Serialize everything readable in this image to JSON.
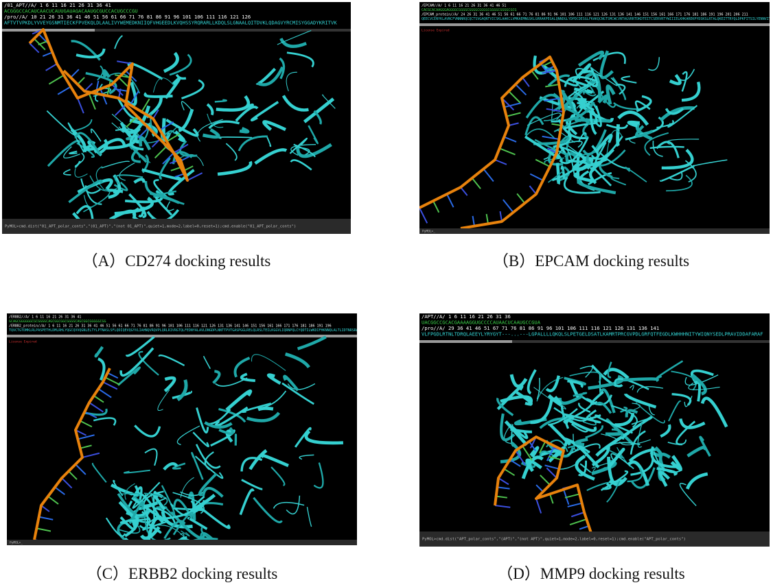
{
  "panels": [
    {
      "caption": "（A）CD274 docking results",
      "header": [
        "/01_APT//A/ 1      6     11     16     21     26     31     36     41",
        "ACGGGCCACAUCAACUCAUUGAUAGACAAUGCGUCCACUGCCCGU",
        "/pro//A/ 10 21   26   31   36   41   46   51   56   61   66   71   76   81   86   91   96   101  106  111  116  121  126",
        "AFTVTVPKDLYVVEYGSNMTIECKFPVEKQLDLAALIVYWEMEDKNIIQFVHGEEDLKVQHSSYRQRARLLKDQLSLGNAALQITDVKLQDAGVYRCMISYGGADYKRITVK"
      ],
      "status": "",
      "command": "PyMOL>cmd.dist(\"01_APT_polar_conts\",\"(01_APT)\",\"(not 01_APT)\",quiet=1,mode=2,label=0,reset=1);cmd.enable(\"01_APT_polar_conts\")"
    },
    {
      "caption": "（B）EPCAM docking results",
      "header": [
        "/EPCAM//A/ 1    6    11   16   21   26   31   36   41   46   51",
        "CACGCACAAGGGAGGGGCGGGGCGGGGCGGGGCGGGGCGGGGCGCG",
        "/EPCAM_protein//A/ 24 26 31 36 41 46 51 56 61 66 71 76 81 86 91 96 101 106 111 116 121 126 131 136 141 146 151 156 161 166 171 176 181 186 191 196 201 206 211",
        "QEECVCENYKLAVNCFVNNNRQCQCTSVGAQNTVICSKLAAKCLVMKAEMNGSKLGRRAKPEGALQNNDGLYDPDCDESGLFKAKQCNGTSMCWCVNTAGVRRTDKDTEITCSERVRTYWIIIELKHKAREKPYDSKSLRTALQKEITTRYQLDPKFITSILYENNVITIDLVQNSSQKTQNDVDIADVAYYFEKDVKGESLFHSKKMDLTVNGEQLDLDPGQTLIYYVDEKAPEFSMQGLK"
      ],
      "status": "License Expired",
      "command": "PyMOL>_"
    },
    {
      "caption": "（C）ERBB2 docking results",
      "header": [
        "/ERBB2//A/ 1    6    11   16   21   26   31   36   41",
        "GCAGCGGGGGGCGCGGGGCAGCGGCGGCGGGGCAGCGGCGGGGGCGG",
        "/ERBB2_protein//A/ 1 6 11 16 21 26 31 36 41 46 51 56 61 66 71 76 81 86 91 96 101 106 111 116 121 126 131 136 141 146 151 156 161 166 171 176 181 186 191 196",
        "TQVCTGTDMKLRLPASPETHLDMLRHLYQGCQVVQGNLELTYLPTNASLSFLQDIQEVQGYVLIAHNQVRQVPLQRLRIVRGTQLFEDNYALAVLDNGDPLNNTTPVTGASPGGLRELQLRSLTEILKGGVLIQRNPQLCYQDTILWKDIFHKNNQLALTLIDTNRSRACHPCSPMCKGSRCWGESSEDCQSLTRTVCAGGCARCKGPLPTDCCHEQCAAGCTGPKHSDCLACLHFNHSGICELHCPALVTYNTDTFESMPNPEGRYTFGASCVTACPYNYLSTDVGSCTLVCPLHNQEVTAEDGTQRCEKCSKPCARVCYGLGMEHLREVRAVTSANIQEFAGCKKIFGSLAFLPESFDGDPASNTAPLQPEQLQVFETLEEITGYLYISAWPDSLPDLSVFQNLQVIRGRILHNGAYSLTLQGLGISWLGLRSLRELGSGLALIHHNTHLCFVHTVPWDQLFRNPHQALLHTANRPEDECVGEGLACHQLCARGHCWGPGPTQCVNCSQFLRGQECVEECRVLQGLPREYVNARHCLPCHPECQPQNGSVTCFGPEADQCVACAHYKDPPFCVARCPSGVKPDLSYMPIWKFPDEEGACQPCPINCTHSCVDLDDKGCPAEQRASPLT"
      ],
      "status": "License Expired",
      "command": "PyMOL>_"
    },
    {
      "caption": "（D）MMP9 docking results",
      "header": [
        "/APT//A/ 1      6     11     16     21     26     31     36",
        "UACGGCCGCACGAAAAGGUGCCCCAUAACUCAAUGCCGUA",
        "/pro//A/ 29   36   41   46   51           67   71   76   81   86   91   96   101  106  111  116  121  126  131  136  141",
        "VLFPGDLRTNLTDRQLAEEYLYRYGYT---...---LGPALLLLQKQLSLPETGELDSATLKAMRTPRCGVPDLGRFQTFEGDLKWHHHNITYWIQNYSEDLPRAVIDDAFARAF"
      ],
      "status": "",
      "command": "PyMOL>cmd.dist(\"APT_polar_conts\",\"(APT)\",\"(not APT)\",quiet=1,mode=2,label=0,reset=1);cmd.enable(\"APT_polar_conts\")"
    }
  ]
}
